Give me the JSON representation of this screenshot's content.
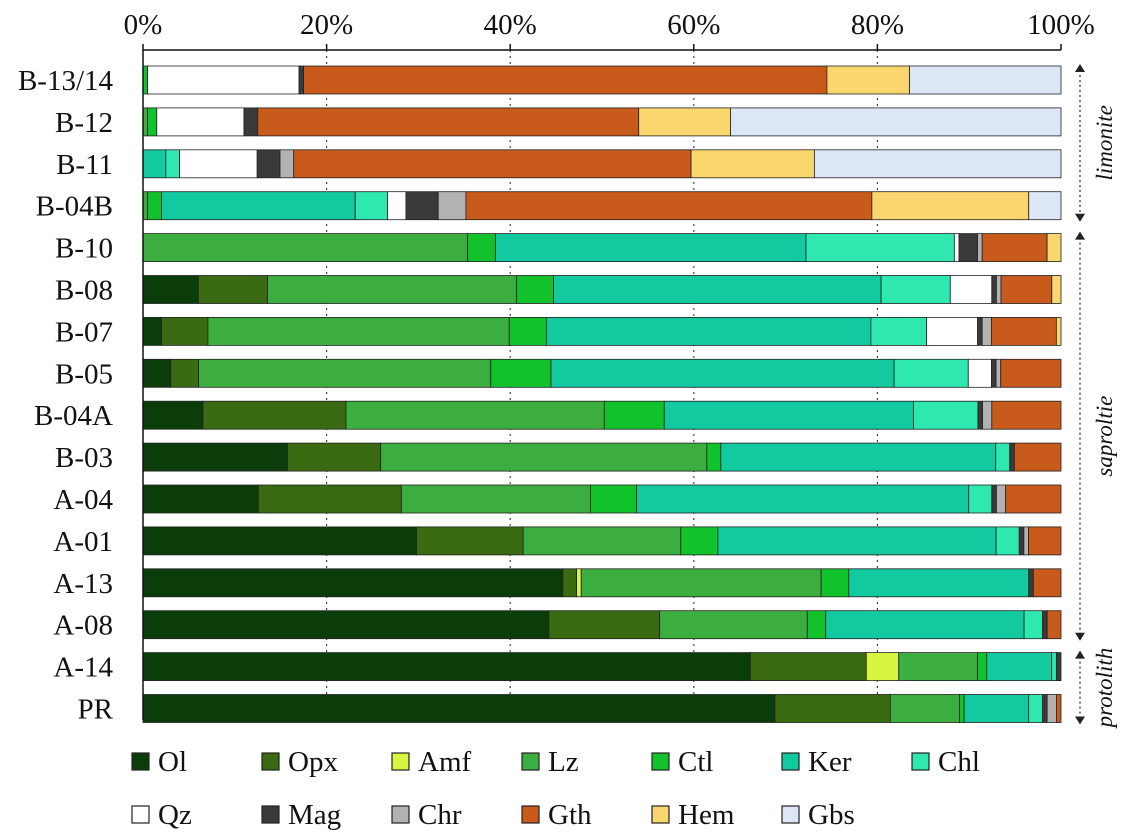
{
  "chart_data": {
    "type": "bar",
    "orientation": "horizontal",
    "stacked": true,
    "normalized": true,
    "title": "",
    "xlabel": "",
    "ylabel": "",
    "xlim": [
      0,
      100
    ],
    "x_ticks": [
      "0%",
      "20%",
      "40%",
      "60%",
      "80%",
      "100%"
    ],
    "x_tick_values": [
      0,
      20,
      40,
      60,
      80,
      100
    ],
    "grid": "vertical dotted",
    "legend_position": "bottom",
    "categories": [
      "B-13/14",
      "B-12",
      "B-11",
      "B-04B",
      "B-10",
      "B-08",
      "B-07",
      "B-05",
      "B-04A",
      "B-03",
      "A-04",
      "A-01",
      "A-13",
      "A-08",
      "A-14",
      "PR"
    ],
    "series": [
      {
        "name": "Ol",
        "color": "#0b3d0b",
        "values": [
          0,
          0,
          0,
          0,
          0,
          6,
          2,
          3,
          6.5,
          15.5,
          12.5,
          29.5,
          45.5,
          44,
          65.5,
          68.5
        ]
      },
      {
        "name": "Opx",
        "color": "#3a6b12",
        "values": [
          0,
          0,
          0,
          0,
          0,
          7.5,
          5,
          3,
          15.5,
          10,
          15.5,
          11.5,
          1.5,
          12,
          12.5,
          12.5
        ]
      },
      {
        "name": "Amf",
        "color": "#d8f542",
        "values": [
          0,
          0,
          0,
          0,
          0,
          0,
          0,
          0,
          0,
          0,
          0,
          0,
          0.5,
          0,
          3.5,
          0
        ]
      },
      {
        "name": "Lz",
        "color": "#3cae40",
        "values": [
          0,
          0.5,
          0,
          0.5,
          35,
          27,
          32.5,
          31.5,
          28,
          35,
          20.5,
          17,
          26,
          16,
          8.5,
          7.5
        ]
      },
      {
        "name": "Ctl",
        "color": "#12c22a",
        "values": [
          0.5,
          1,
          0,
          1.5,
          3,
          4,
          4,
          6.5,
          6.5,
          1.5,
          5,
          4,
          3,
          2,
          1,
          0.5
        ]
      },
      {
        "name": "Ker",
        "color": "#12c9a0",
        "values": [
          0,
          0,
          2.5,
          21,
          33.5,
          35.5,
          35,
          37,
          27,
          29.5,
          36,
          30,
          19.5,
          21.5,
          7,
          7
        ]
      },
      {
        "name": "Chl",
        "color": "#2ee8b0",
        "values": [
          0,
          0,
          1.5,
          3.5,
          16,
          7.5,
          6,
          8,
          7,
          1.5,
          2.5,
          2.5,
          0,
          2,
          0.5,
          1.5
        ]
      },
      {
        "name": "Qz",
        "color": "#ffffff",
        "values": [
          16.5,
          9.5,
          8.5,
          2,
          0.5,
          4.5,
          5.5,
          2.5,
          0,
          0,
          0,
          0,
          0,
          0,
          0,
          0
        ]
      },
      {
        "name": "Mag",
        "color": "#3a3a3a",
        "values": [
          0.5,
          1.5,
          2.5,
          3.5,
          2,
          0.5,
          0.5,
          0.5,
          0.5,
          0.5,
          0.5,
          0.5,
          0.5,
          0.5,
          0.5,
          0.5
        ]
      },
      {
        "name": "Chr",
        "color": "#b2b2b2",
        "values": [
          0,
          0,
          1.5,
          3,
          0.5,
          0.5,
          1,
          0.5,
          1,
          0,
          1,
          0.5,
          0,
          0,
          0,
          1
        ]
      },
      {
        "name": "Gth",
        "color": "#c85a1c",
        "values": [
          57,
          41.5,
          43.5,
          44,
          7,
          5.5,
          7,
          6.5,
          7.5,
          5,
          6,
          3.5,
          3,
          1.5,
          0,
          0.5
        ]
      },
      {
        "name": "Hem",
        "color": "#fad76e",
        "values": [
          9,
          10,
          13.5,
          17,
          1.5,
          1,
          0.5,
          0,
          0,
          0,
          0,
          0,
          0,
          0,
          0,
          0
        ]
      },
      {
        "name": "Gbs",
        "color": "#dce6f4",
        "values": [
          16.5,
          36,
          27,
          3.5,
          0,
          0,
          0,
          0,
          0,
          0,
          0,
          0,
          0,
          0,
          0,
          0
        ]
      }
    ],
    "zones": [
      {
        "label": "limonite",
        "from": "B-13/14",
        "to": "B-04B"
      },
      {
        "label": "saproltie",
        "from": "B-10",
        "to": "A-08"
      },
      {
        "label": "protolith",
        "from": "A-14",
        "to": "PR"
      }
    ]
  }
}
